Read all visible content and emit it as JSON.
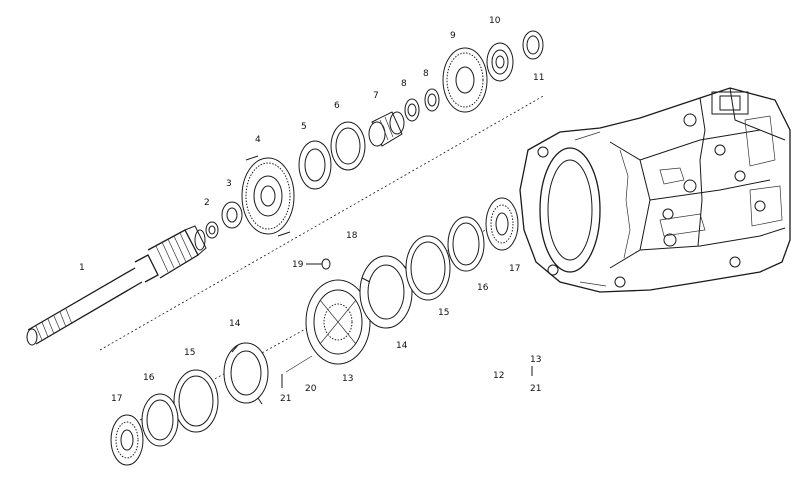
{
  "parts": {
    "p1": "1",
    "p2": "2",
    "p3": "3",
    "p4": "4",
    "p5": "5",
    "p6": "6",
    "p7": "7",
    "p8a": "8",
    "p8b": "8",
    "p9": "9",
    "p10": "10",
    "p11": "11",
    "p12": "12",
    "p13a": "13",
    "p13b": "13",
    "p14a": "14",
    "p14b": "14",
    "p15a": "15",
    "p15b": "15",
    "p16a": "16",
    "p16b": "16",
    "p17a": "17",
    "p17b": "17",
    "p18": "18",
    "p19": "19",
    "p20": "20",
    "p21a": "21",
    "p21b": "21"
  }
}
